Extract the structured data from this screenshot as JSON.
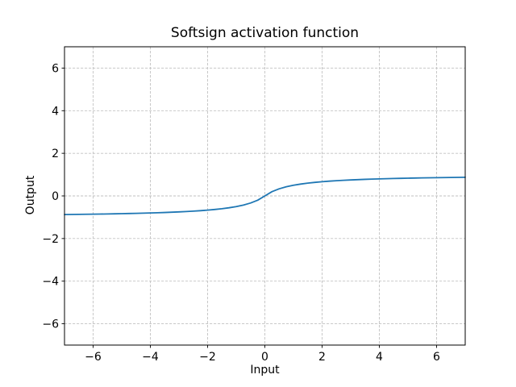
{
  "figure": {
    "title": "Softsign activation function",
    "xlabel": "Input",
    "ylabel": "Output"
  },
  "colors": {
    "background": "#ffffff",
    "spine": "#000000",
    "grid": "#c2c2c2",
    "tick": "#000000",
    "text": "#000000",
    "line": "#1f77b4"
  },
  "chart_data": {
    "type": "line",
    "title": "Softsign activation function",
    "xlabel": "Input",
    "ylabel": "Output",
    "xlim": [
      -7,
      7
    ],
    "ylim": [
      -7,
      7
    ],
    "xticks": [
      -6,
      -4,
      -2,
      0,
      2,
      4,
      6
    ],
    "yticks": [
      -6,
      -4,
      -2,
      0,
      2,
      4,
      6
    ],
    "xtick_labels": [
      "−6",
      "−4",
      "−2",
      "0",
      "2",
      "4",
      "6"
    ],
    "ytick_labels": [
      "−6",
      "−4",
      "−2",
      "0",
      "2",
      "4",
      "6"
    ],
    "grid": true,
    "grid_style": "dashed",
    "legend": "none",
    "line_color": "#1f77b4",
    "line_width": 1.8,
    "series": [
      {
        "name": "softsign",
        "x": [
          -7,
          -6.75,
          -6.5,
          -6.25,
          -6,
          -5.75,
          -5.5,
          -5.25,
          -5,
          -4.75,
          -4.5,
          -4.25,
          -4,
          -3.75,
          -3.5,
          -3.25,
          -3,
          -2.75,
          -2.5,
          -2.25,
          -2,
          -1.75,
          -1.5,
          -1.25,
          -1,
          -0.75,
          -0.5,
          -0.25,
          0,
          0.25,
          0.5,
          0.75,
          1,
          1.25,
          1.5,
          1.75,
          2,
          2.25,
          2.5,
          2.75,
          3,
          3.25,
          3.5,
          3.75,
          4,
          4.25,
          4.5,
          4.75,
          5,
          5.25,
          5.5,
          5.75,
          6,
          6.25,
          6.5,
          6.75,
          7
        ],
        "y": [
          -0.875,
          -0.871,
          -0.8667,
          -0.8621,
          -0.8571,
          -0.8519,
          -0.8462,
          -0.84,
          -0.8333,
          -0.8261,
          -0.8182,
          -0.8095,
          -0.8,
          -0.7895,
          -0.7778,
          -0.7647,
          -0.75,
          -0.7333,
          -0.7143,
          -0.6923,
          -0.6667,
          -0.6364,
          -0.6,
          -0.5556,
          -0.5,
          -0.4286,
          -0.3333,
          -0.2,
          0,
          0.2,
          0.3333,
          0.4286,
          0.5,
          0.5556,
          0.6,
          0.6364,
          0.6667,
          0.6923,
          0.7143,
          0.7333,
          0.75,
          0.7647,
          0.7778,
          0.7895,
          0.8,
          0.8095,
          0.8182,
          0.8261,
          0.8333,
          0.84,
          0.8462,
          0.8519,
          0.8571,
          0.8621,
          0.8667,
          0.871,
          0.875
        ]
      }
    ]
  }
}
